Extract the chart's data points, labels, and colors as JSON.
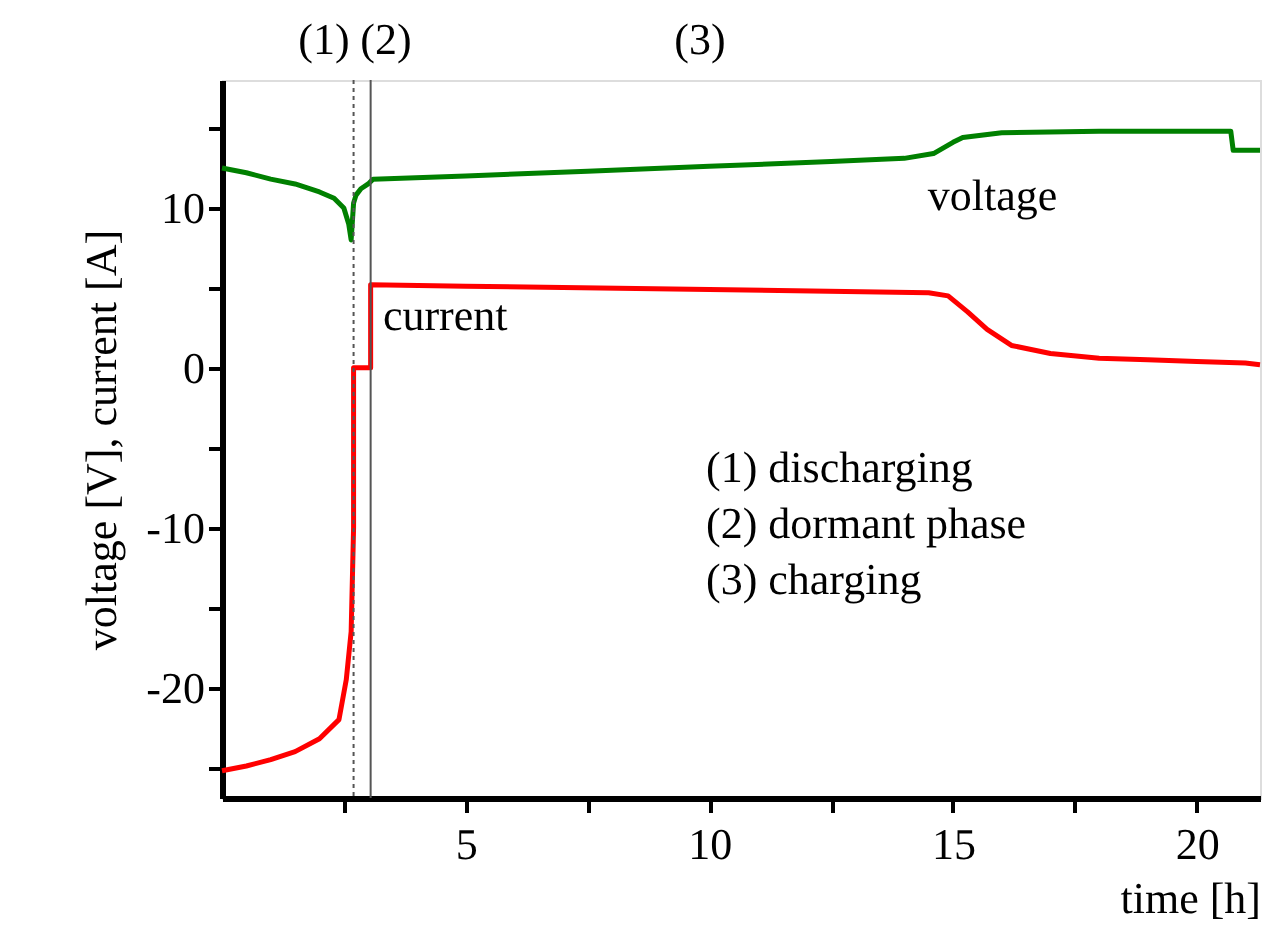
{
  "chart_data": {
    "type": "line",
    "xlabel": "time [h]",
    "ylabel": "voltage [V], current [A]",
    "xlim": [
      0,
      21.3
    ],
    "ylim": [
      -26.9,
      18
    ],
    "xticks": [
      {
        "value": 2.5,
        "label": null
      },
      5,
      {
        "value": 7.5,
        "label": null
      },
      10,
      {
        "value": 12.5,
        "label": null
      },
      15,
      {
        "value": 17.5,
        "label": null
      },
      20
    ],
    "yticks": [
      {
        "value": -25,
        "label": null
      },
      -20,
      {
        "value": -15,
        "label": null
      },
      -10,
      {
        "value": -5,
        "label": null
      },
      0,
      {
        "value": 5,
        "label": null
      },
      10,
      {
        "value": 15,
        "label": null
      }
    ],
    "grid": false,
    "legend": false,
    "marker": "none",
    "line_style": "solid",
    "series": [
      {
        "name": "voltage",
        "color": "#008000",
        "x": [
          0,
          0.5,
          1,
          1.5,
          2,
          2.3,
          2.5,
          2.6,
          2.65,
          2.7,
          2.75,
          2.85,
          3.0,
          3.1,
          5,
          7.5,
          10,
          12.5,
          14,
          14.6,
          15,
          15.2,
          16,
          18,
          20.7,
          20.75,
          21.3
        ],
        "values": [
          12.5,
          12.2,
          11.8,
          11.5,
          11.0,
          10.6,
          10.0,
          9.0,
          8.0,
          10.3,
          10.8,
          11.2,
          11.5,
          11.8,
          12.0,
          12.3,
          12.6,
          12.9,
          13.1,
          13.4,
          14.1,
          14.4,
          14.7,
          14.8,
          14.8,
          13.6,
          13.6
        ]
      },
      {
        "name": "current",
        "color": "#ff0000",
        "x": [
          0,
          0.5,
          1,
          1.5,
          2,
          2.4,
          2.55,
          2.65,
          2.7,
          2.7,
          3.05,
          3.05,
          5,
          10,
          14.5,
          14.9,
          15.3,
          15.7,
          16.2,
          17,
          18,
          19,
          20,
          21,
          21.3
        ],
        "values": [
          -25.2,
          -24.9,
          -24.5,
          -24.0,
          -23.2,
          -22.0,
          -19.5,
          -16.5,
          -10,
          0,
          0,
          5.2,
          5.1,
          4.9,
          4.7,
          4.5,
          3.5,
          2.4,
          1.4,
          0.9,
          0.6,
          0.5,
          0.4,
          0.3,
          0.2
        ]
      }
    ],
    "ref_lines": [
      {
        "axis": "x",
        "value": 2.7,
        "color": "#555555",
        "line_style": "dotted"
      },
      {
        "axis": "x",
        "value": 3.05,
        "color": "#555555",
        "line_style": "solid"
      }
    ],
    "annotations": [
      "(1)",
      "(2)",
      "(3)",
      "(1) discharging",
      "(2) dormant phase",
      "(3) charging"
    ]
  }
}
